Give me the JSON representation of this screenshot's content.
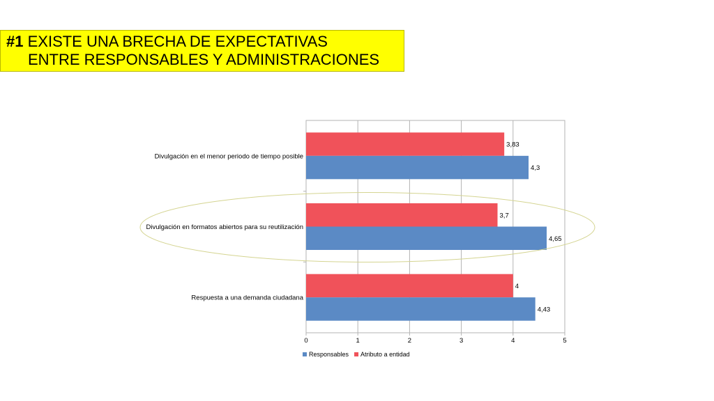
{
  "slide": {
    "title_number": "#1",
    "title_line1": "EXISTE UNA BRECHA DE EXPECTATIVAS",
    "title_line2": "ENTRE RESPONSABLES Y ADMINISTRACIONES"
  },
  "colors": {
    "title_bg": "#ffff00",
    "responsables": "#5b8ac5",
    "atributo": "#f0525a",
    "highlight": "#d4d490"
  },
  "chart_data": {
    "type": "bar",
    "orientation": "horizontal",
    "categories": [
      "Divulgación en el menor periodo de tiempo posible",
      "Divulgación en formatos abiertos para su reutilización",
      "Respuesta a una demanda ciudadana"
    ],
    "series": [
      {
        "name": "Atributo a entidad",
        "values": [
          3.83,
          3.7,
          4
        ],
        "labels": [
          "3,83",
          "3,7",
          "4"
        ]
      },
      {
        "name": "Responsables",
        "values": [
          4.3,
          4.65,
          4.43
        ],
        "labels": [
          "4,3",
          "4,65",
          "4,43"
        ]
      }
    ],
    "legend_order": [
      "Responsables",
      "Atributo a entidad"
    ],
    "xlim": [
      0,
      5
    ],
    "xticks": [
      0,
      1,
      2,
      3,
      4,
      5
    ],
    "xtick_labels": [
      "0",
      "1",
      "2",
      "3",
      "4",
      "5"
    ],
    "grid": true,
    "legend_position": "bottom",
    "highlighted_category": "Divulgación en formatos abiertos para su reutilización"
  }
}
